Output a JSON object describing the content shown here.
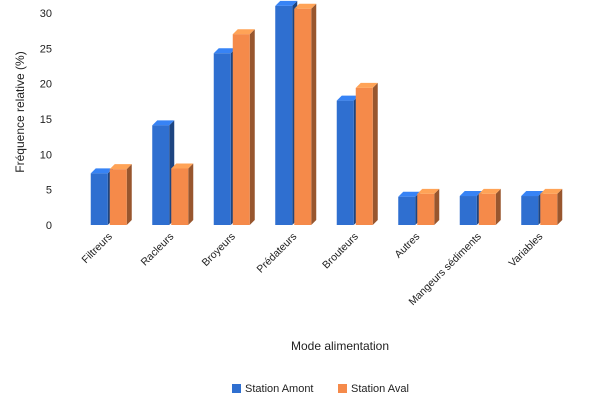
{
  "chart_data": {
    "type": "bar",
    "style": "3d-clustered-column",
    "categories": [
      "Filtreurs",
      "Racleurs",
      "Broyeurs",
      "Prédateurs",
      "Brouteurs",
      "Autres",
      "Mangeurs sédiments",
      "Variables"
    ],
    "series": [
      {
        "name": "Station Amont",
        "values": [
          7.3,
          14.1,
          24.3,
          31.0,
          17.6,
          4.0,
          4.1,
          4.1
        ],
        "color": "#2F6FD0"
      },
      {
        "name": "Station Aval",
        "values": [
          7.9,
          8.0,
          27.0,
          30.6,
          19.4,
          4.4,
          4.4,
          4.4
        ],
        "color": "#F58A4A"
      }
    ],
    "title": "",
    "xlabel": "Mode alimentation",
    "ylabel": "Fréquence relative (%)",
    "ylim": [
      0,
      30
    ],
    "yticks": [
      0,
      5,
      10,
      15,
      20,
      25,
      30
    ],
    "grid": false,
    "legend": "bottom"
  }
}
